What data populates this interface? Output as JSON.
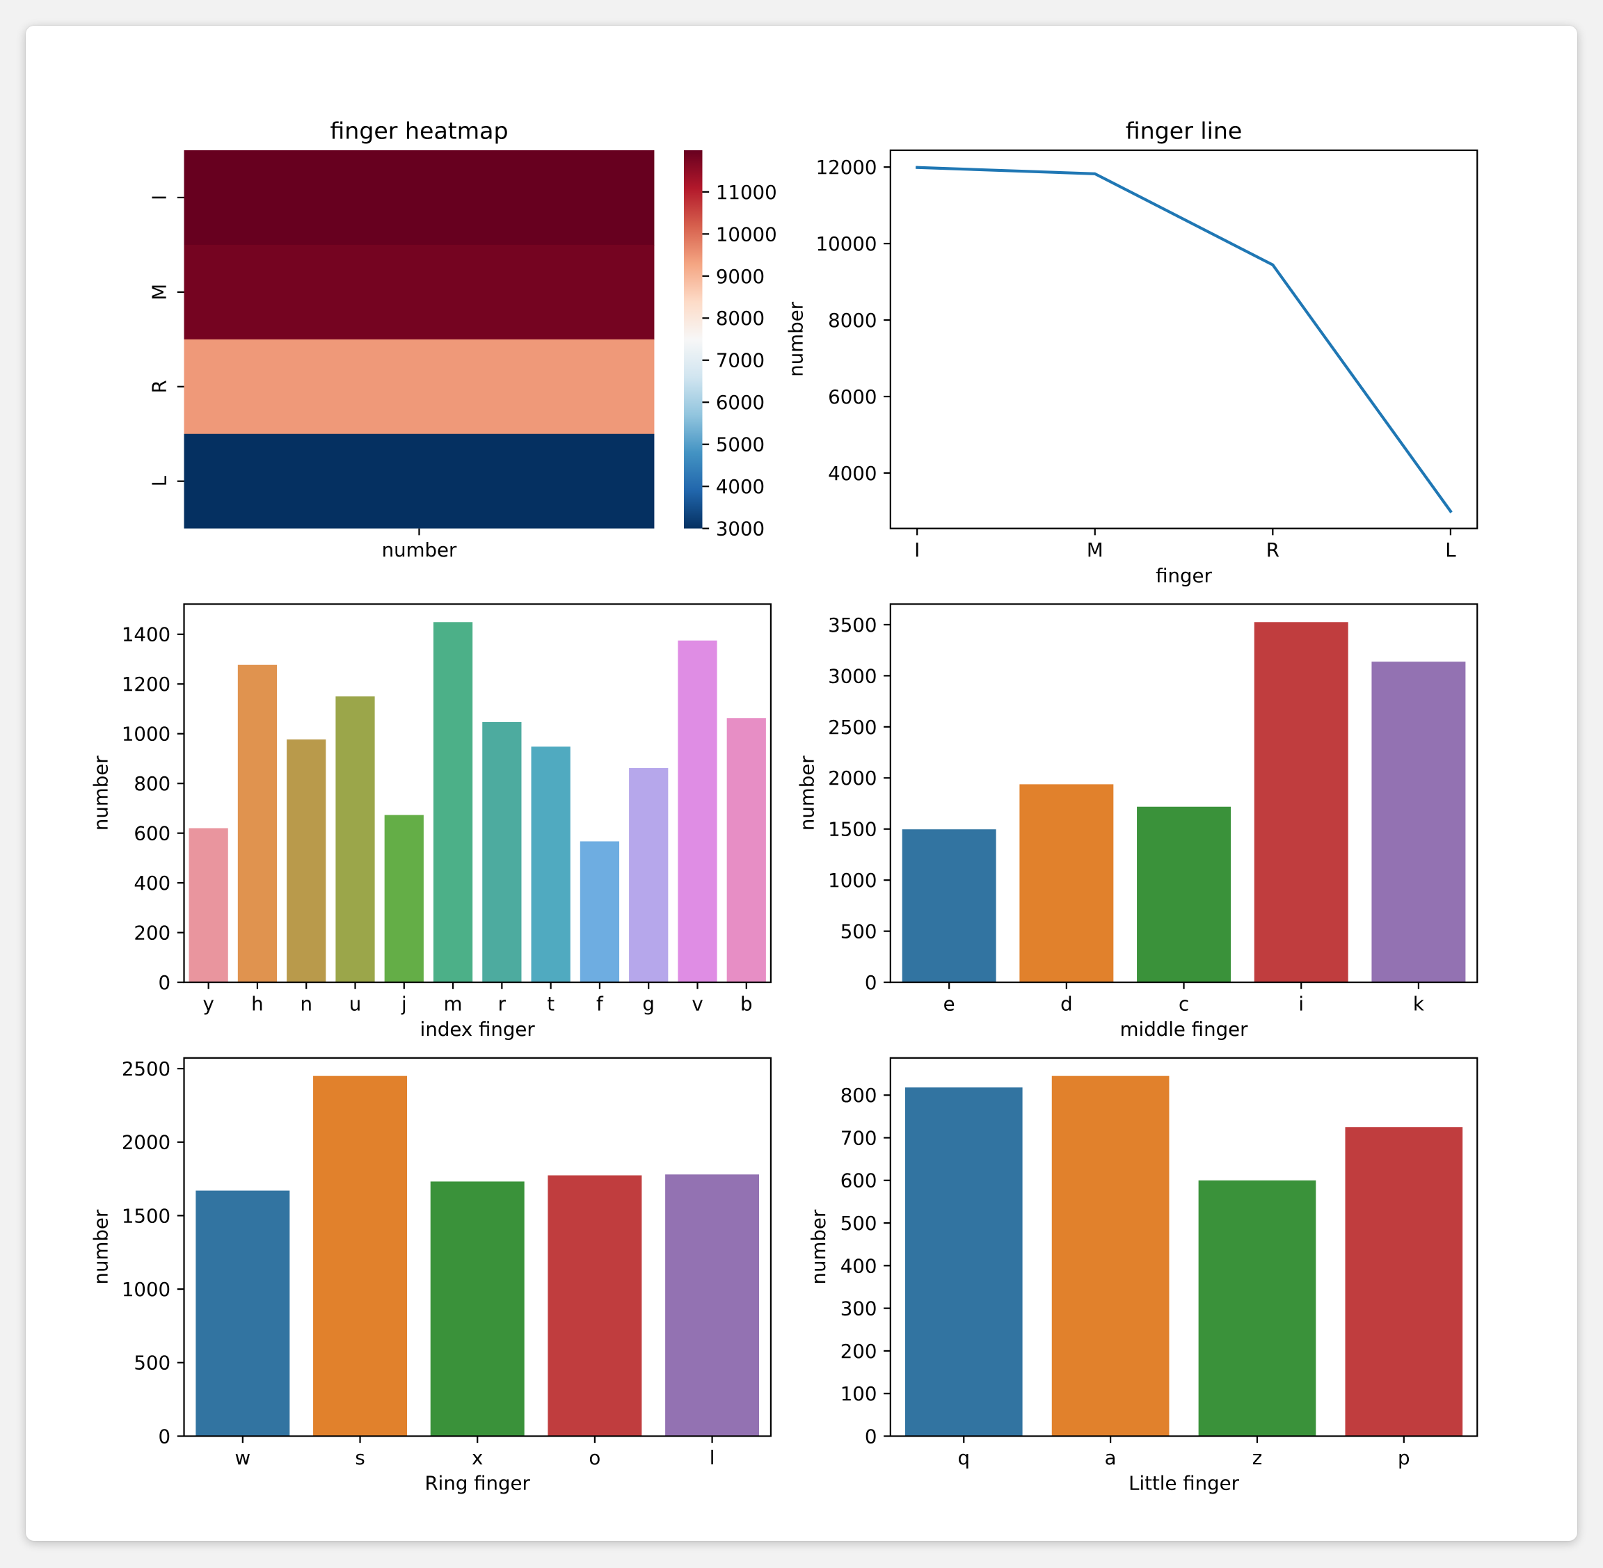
{
  "chart_data": [
    {
      "type": "heatmap",
      "title": "finger heatmap",
      "rows": [
        "I",
        "M",
        "R",
        "L"
      ],
      "columns": [
        "number"
      ],
      "values": [
        [
          11990
        ],
        [
          11825
        ],
        [
          9443
        ],
        [
          3000
        ]
      ],
      "colorbar": {
        "range": [
          3000,
          11990
        ],
        "ticks": [
          3000,
          4000,
          5000,
          6000,
          7000,
          8000,
          9000,
          10000,
          11000
        ],
        "colors": [
          "#053061",
          "#2166ac",
          "#4393c3",
          "#92c5de",
          "#d1e5f0",
          "#f7f7f7",
          "#fddbc7",
          "#f4a582",
          "#d6604d",
          "#b2182b",
          "#67001f"
        ]
      }
    },
    {
      "type": "line",
      "title": "finger line",
      "xlabel": "finger",
      "ylabel": "number",
      "categories": [
        "I",
        "M",
        "R",
        "L"
      ],
      "values": [
        11990,
        11825,
        9443,
        3000
      ],
      "ylim": [
        2550.5,
        12439.5
      ],
      "yticks": [
        4000,
        6000,
        8000,
        10000,
        12000
      ],
      "color": "#1f77b4"
    },
    {
      "type": "bar",
      "xlabel": "index finger",
      "ylabel": "number",
      "categories": [
        "y",
        "h",
        "n",
        "u",
        "j",
        "m",
        "r",
        "t",
        "f",
        "g",
        "v",
        "b"
      ],
      "values": [
        620,
        1277,
        977,
        1150,
        673,
        1449,
        1047,
        948,
        567,
        862,
        1375,
        1063
      ],
      "ylim": [
        0,
        1521.45
      ],
      "yticks": [
        0,
        200,
        400,
        600,
        800,
        1000,
        1200,
        1400
      ],
      "colors": [
        "#e9959e",
        "#e0934f",
        "#b99a4b",
        "#9ba64a",
        "#64ae47",
        "#4cb088",
        "#4dab9f",
        "#50aac0",
        "#6eade1",
        "#b6a7eb",
        "#df8de4",
        "#e78ec5"
      ]
    },
    {
      "type": "bar",
      "xlabel": "middle finger",
      "ylabel": "number",
      "categories": [
        "e",
        "d",
        "c",
        "i",
        "k"
      ],
      "values": [
        1497,
        1938,
        1718,
        3525,
        3138
      ],
      "ylim": [
        0,
        3701.25
      ],
      "yticks": [
        0,
        500,
        1000,
        1500,
        2000,
        2500,
        3000,
        3500
      ],
      "colors": [
        "#3274a1",
        "#e1812c",
        "#3a923a",
        "#c03d3e",
        "#9372b2"
      ]
    },
    {
      "type": "bar",
      "xlabel": "Ring finger",
      "ylabel": "number",
      "categories": [
        "w",
        "s",
        "x",
        "o",
        "l"
      ],
      "values": [
        1670,
        2450,
        1732,
        1774,
        1780
      ],
      "ylim": [
        0,
        2572.5
      ],
      "yticks": [
        0,
        500,
        1000,
        1500,
        2000,
        2500
      ],
      "colors": [
        "#3274a1",
        "#e1812c",
        "#3a923a",
        "#c03d3e",
        "#9372b2"
      ]
    },
    {
      "type": "bar",
      "xlabel": "Little finger",
      "ylabel": "number",
      "categories": [
        "q",
        "a",
        "z",
        "p"
      ],
      "values": [
        818,
        845,
        600,
        725
      ],
      "ylim": [
        0,
        887.25
      ],
      "yticks": [
        0,
        100,
        200,
        300,
        400,
        500,
        600,
        700,
        800
      ],
      "colors": [
        "#3274a1",
        "#e1812c",
        "#3a923a",
        "#c03d3e"
      ]
    }
  ]
}
